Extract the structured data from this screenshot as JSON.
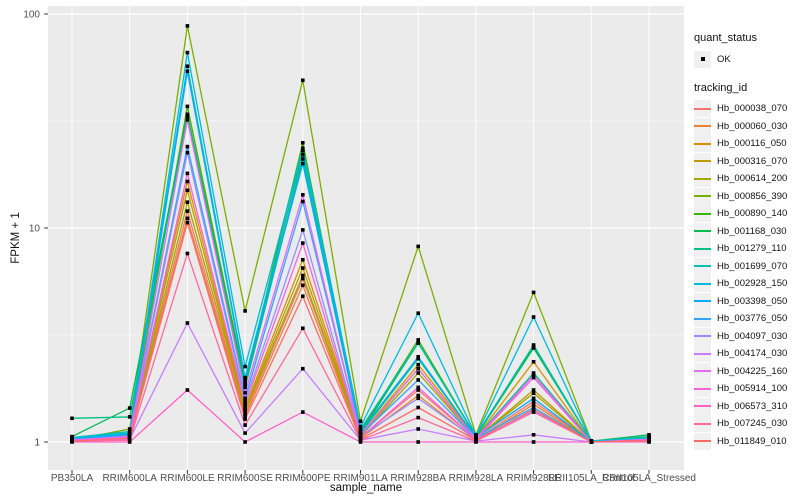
{
  "axes": {
    "x_title": "sample_name",
    "y_title": "FPKM + 1"
  },
  "legend": {
    "quant_status_title": "quant_status",
    "quant_status_items": [
      {
        "label": "OK",
        "marker_color": "#000000"
      }
    ],
    "tracking_id_title": "tracking_id"
  },
  "style": {
    "panel_background": "#EBEBEB",
    "grid_color": "#FFFFFF",
    "tick_color": "#333333",
    "tick_label_color": "#4D4D4D",
    "marker_color": "#000000",
    "legend_key_fill": "#F0F0F0"
  },
  "chart_data": {
    "type": "line",
    "title": "",
    "xlabel": "sample_name",
    "ylabel": "FPKM + 1",
    "y_scale": "log10",
    "ylim": [
      0.74,
      109
    ],
    "y_tick_values": [
      1,
      10,
      100
    ],
    "y_tick_labels": [
      "1",
      "10",
      "100"
    ],
    "y_minor_tick_values": [
      3.162,
      31.62
    ],
    "grid": true,
    "legend_position": "right",
    "point_marker": "small black square (quant_status OK)",
    "categories": [
      "PB350LA",
      "RRIM600LA",
      "RRIM600LE",
      "RRIM600SE",
      "RRIM600PE",
      "RRIM901LA",
      "RRIM928BA",
      "RRIM928LA",
      "RRIM928LE",
      "RRII105LA_Control",
      "RRII105LA_Stressed"
    ],
    "series": [
      {
        "name": "Hb_000038_070",
        "color": "#F8766D",
        "values": [
          1.02,
          1.05,
          12.0,
          1.35,
          5.8,
          1.05,
          1.75,
          1.03,
          1.55,
          1.0,
          1.02
        ]
      },
      {
        "name": "Hb_000060_030",
        "color": "#EA8331",
        "values": [
          1.01,
          1.04,
          11.1,
          1.32,
          5.4,
          1.04,
          1.65,
          1.02,
          1.5,
          1.0,
          1.02
        ]
      },
      {
        "name": "Hb_000116_050",
        "color": "#D89000",
        "values": [
          1.03,
          1.08,
          16.5,
          1.45,
          7.1,
          1.08,
          2.3,
          1.05,
          2.37,
          1.0,
          1.03
        ]
      },
      {
        "name": "Hb_000316_070",
        "color": "#C09B00",
        "values": [
          1.02,
          1.07,
          15.0,
          1.42,
          6.5,
          1.07,
          2.2,
          1.04,
          1.75,
          1.0,
          1.03
        ]
      },
      {
        "name": "Hb_000614_200",
        "color": "#A3A500",
        "values": [
          1.02,
          1.06,
          13.2,
          1.4,
          6.0,
          1.06,
          2.1,
          1.04,
          1.69,
          1.0,
          1.02
        ]
      },
      {
        "name": "Hb_000856_390",
        "color": "#7CAE00",
        "values": [
          1.02,
          1.15,
          88.0,
          4.1,
          49.0,
          1.25,
          8.2,
          1.08,
          5.0,
          1.01,
          1.03
        ]
      },
      {
        "name": "Hb_000890_140",
        "color": "#39B600",
        "values": [
          1.05,
          1.1,
          37.0,
          1.9,
          25.0,
          1.12,
          3.0,
          1.06,
          2.8,
          1.01,
          1.04
        ]
      },
      {
        "name": "Hb_001168_030",
        "color": "#00BB4E",
        "values": [
          1.06,
          1.44,
          34.0,
          1.85,
          23.0,
          1.1,
          2.9,
          1.06,
          2.75,
          1.01,
          1.08
        ]
      },
      {
        "name": "Hb_001279_110",
        "color": "#00C087",
        "values": [
          1.29,
          1.31,
          33.0,
          1.8,
          21.0,
          1.1,
          2.45,
          1.05,
          2.1,
          1.01,
          1.06
        ]
      },
      {
        "name": "Hb_001699_070",
        "color": "#00C0B8",
        "values": [
          1.05,
          1.12,
          57.0,
          2.0,
          22.0,
          1.15,
          2.9,
          1.07,
          2.84,
          1.01,
          1.05
        ]
      },
      {
        "name": "Hb_002928_150",
        "color": "#00BAE0",
        "values": [
          1.04,
          1.1,
          66.0,
          2.25,
          23.6,
          1.18,
          4.0,
          1.07,
          3.84,
          1.01,
          1.04
        ]
      },
      {
        "name": "Hb_003398_050",
        "color": "#00ACFC",
        "values": [
          1.03,
          1.09,
          54.0,
          1.95,
          20.0,
          1.12,
          2.5,
          1.05,
          1.6,
          1.0,
          1.03
        ]
      },
      {
        "name": "Hb_003776_050",
        "color": "#35A2FF",
        "values": [
          1.03,
          1.07,
          24.0,
          1.6,
          13.3,
          1.08,
          1.95,
          1.04,
          1.45,
          1.0,
          1.03
        ]
      },
      {
        "name": "Hb_004097_030",
        "color": "#9590FF",
        "values": [
          1.02,
          1.06,
          22.5,
          1.55,
          9.8,
          1.06,
          1.6,
          1.03,
          1.4,
          1.0,
          1.02
        ]
      },
      {
        "name": "Hb_004174_030",
        "color": "#C77CFF",
        "values": [
          1.01,
          1.03,
          3.6,
          1.1,
          2.2,
          1.02,
          1.15,
          1.01,
          1.08,
          1.0,
          1.01
        ]
      },
      {
        "name": "Hb_004225_160",
        "color": "#E76BF3",
        "values": [
          1.02,
          1.06,
          32.0,
          1.7,
          14.3,
          1.08,
          2.2,
          1.04,
          2.05,
          1.0,
          1.03
        ]
      },
      {
        "name": "Hb_005914_100",
        "color": "#FA62DB",
        "values": [
          1.02,
          1.05,
          18.0,
          1.5,
          8.5,
          1.05,
          1.8,
          1.03,
          2.0,
          1.0,
          1.02
        ]
      },
      {
        "name": "Hb_006573_310",
        "color": "#FF61C9",
        "values": [
          1.0,
          1.0,
          1.75,
          1.0,
          1.38,
          1.0,
          1.0,
          1.0,
          1.0,
          1.0,
          1.0
        ]
      },
      {
        "name": "Hb_007245_030",
        "color": "#FF689E",
        "values": [
          1.01,
          1.02,
          7.6,
          1.2,
          3.4,
          1.02,
          1.3,
          1.01,
          1.38,
          1.0,
          1.01
        ]
      },
      {
        "name": "Hb_011849_010",
        "color": "#FF6C67",
        "values": [
          1.01,
          1.04,
          10.6,
          1.28,
          4.8,
          1.03,
          1.45,
          1.02,
          1.42,
          1.0,
          1.02
        ]
      }
    ]
  }
}
